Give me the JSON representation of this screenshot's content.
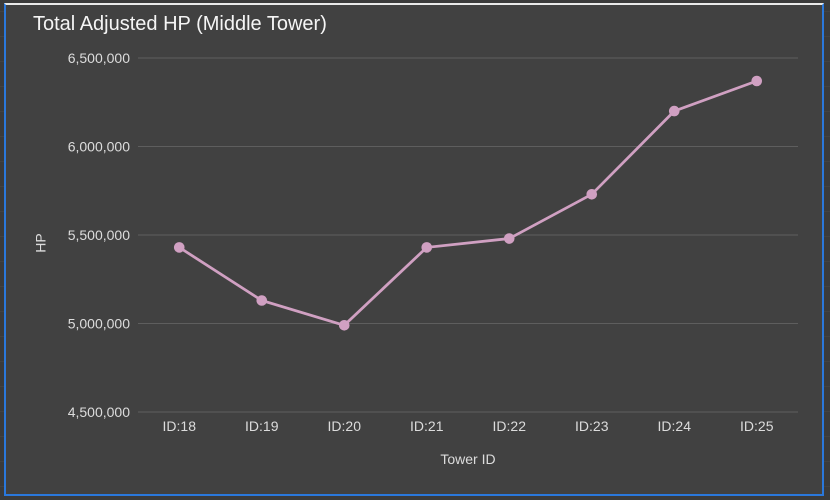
{
  "frame": {
    "top_border_color": "#e9e9e9",
    "focus_border_color": "#2a78dc",
    "outer_background": "#3b3b3b"
  },
  "chart_data": {
    "type": "line",
    "title": "Total Adjusted HP (Middle Tower)",
    "xlabel": "Tower ID",
    "ylabel": "HP",
    "categories": [
      "ID:18",
      "ID:19",
      "ID:20",
      "ID:21",
      "ID:22",
      "ID:23",
      "ID:24",
      "ID:25"
    ],
    "series": [
      {
        "name": "Total Adjusted HP",
        "values": [
          5430000,
          5130000,
          4990000,
          5430000,
          5480000,
          5730000,
          6200000,
          6370000
        ]
      }
    ],
    "ylim": [
      4500000,
      6500000
    ],
    "y_ticks": [
      4500000,
      5000000,
      5500000,
      6000000,
      6500000
    ],
    "y_tick_labels": [
      "4,500,000",
      "5,000,000",
      "5,500,000",
      "6,000,000",
      "6,500,000"
    ],
    "grid": true,
    "legend": "none",
    "colors": {
      "line": "#d0a0c2",
      "marker": "#d0a0c2",
      "plot_background": "#414141",
      "gridline": "#5e5e5e",
      "tick_text": "#dcdcdc",
      "title_text": "#f5f5f5"
    }
  }
}
